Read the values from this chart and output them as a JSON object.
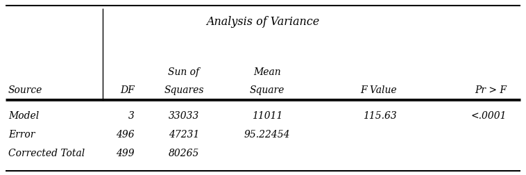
{
  "title": "Analysis of Variance",
  "col_headers_line1": [
    "Source",
    "DF",
    "Sun of",
    "Mean",
    "F Value",
    "Pr > F"
  ],
  "col_headers_line2": [
    "",
    "",
    "Squares",
    "Square",
    "",
    ""
  ],
  "rows": [
    [
      "Model",
      "3",
      "33033",
      "11011",
      "115.63",
      "<.0001"
    ],
    [
      "Error",
      "496",
      "47231",
      "95.22454",
      "",
      ""
    ],
    [
      "Corrected Total",
      "499",
      "80265",
      "",
      "",
      ""
    ]
  ],
  "bg_color": "#ffffff",
  "text_color": "#000000",
  "font_size": 10.0,
  "title_font_size": 11.5
}
